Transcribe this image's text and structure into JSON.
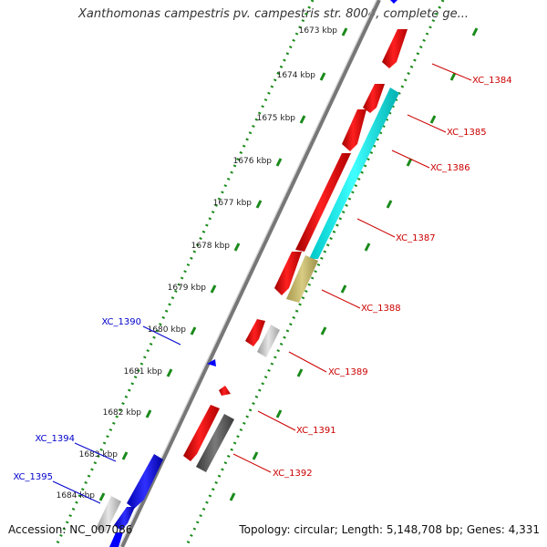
{
  "title": "Xanthomonas campestris pv. campestris str. 8004, complete ge...",
  "footer": {
    "accession": "Accession: NC_007086",
    "topology": "Topology: circular; Length: 5,148,708 bp; Genes: 4,331"
  },
  "ticks": [
    "1673 kbp",
    "1674 kbp",
    "1675 kbp",
    "1676 kbp",
    "1677 kbp",
    "1678 kbp",
    "1679 kbp",
    "1680 kbp",
    "1681 kbp",
    "1682 kbp",
    "1683 kbp",
    "1684 kbp"
  ],
  "gene_labels": [
    {
      "text": "XC_1384",
      "strand": "forward"
    },
    {
      "text": "XC_1385",
      "strand": "forward"
    },
    {
      "text": "XC_1386",
      "strand": "forward"
    },
    {
      "text": "XC_1387",
      "strand": "forward"
    },
    {
      "text": "XC_1388",
      "strand": "forward"
    },
    {
      "text": "XC_1389",
      "strand": "forward"
    },
    {
      "text": "XC_1391",
      "strand": "forward"
    },
    {
      "text": "XC_1392",
      "strand": "forward"
    },
    {
      "text": "XC_1390",
      "strand": "reverse"
    },
    {
      "text": "XC_1394",
      "strand": "reverse"
    },
    {
      "text": "XC_1395",
      "strand": "reverse"
    }
  ],
  "colors": {
    "red_gene": "#ff0000",
    "cyan_gene": "#00ffff",
    "olive_gene": "#c8bc6e",
    "grey_gene": "#c8c8c8",
    "dark_gene": "#5a5a5a",
    "blue_gene": "#0000ff",
    "forward_label": "#cc0000",
    "reverse_label": "#0000cc",
    "ruler": "#1a8a1a",
    "backbone": "#777777"
  }
}
